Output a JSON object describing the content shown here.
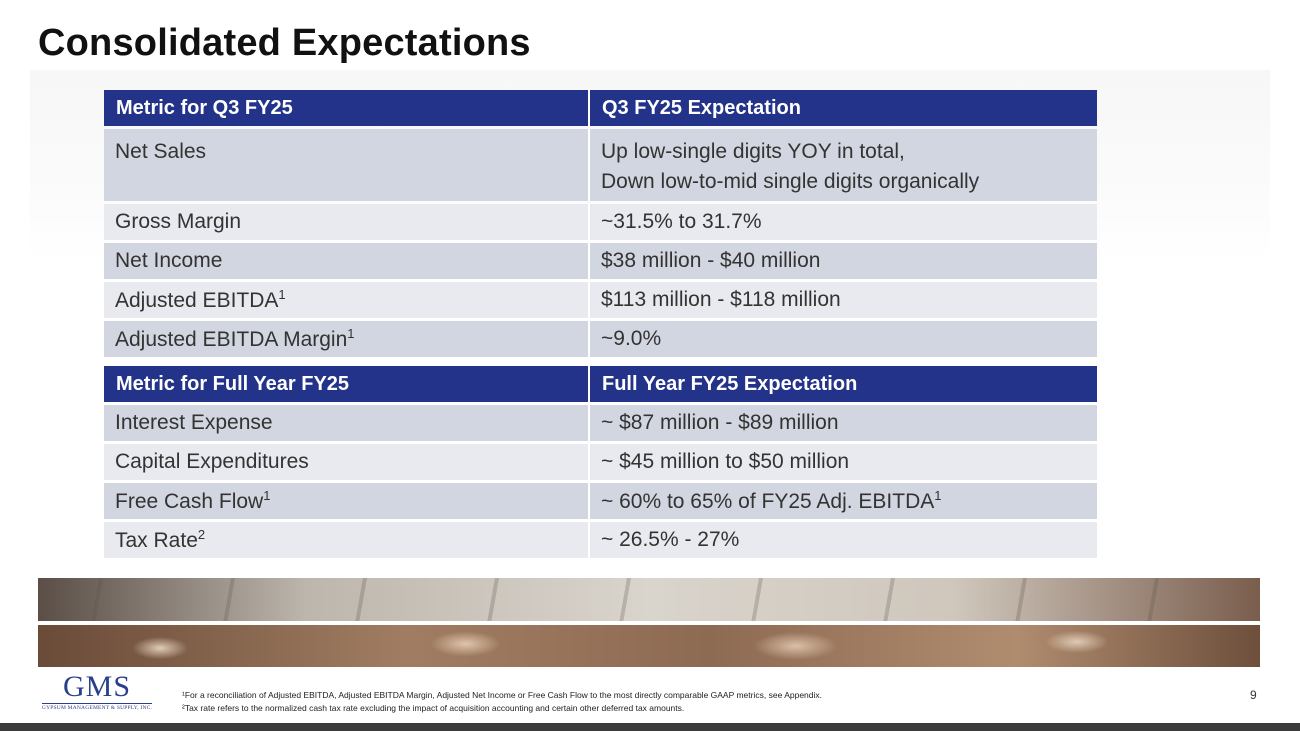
{
  "title": "Consolidated Expectations",
  "q3_table": {
    "headers": [
      "Metric for Q3 FY25",
      "Q3 FY25 Expectation"
    ],
    "rows": [
      {
        "metric": "Net Sales",
        "sup": "",
        "value": "Up low-single digits YOY in total,",
        "value2": "Down low-to-mid single digits organically",
        "value_sup": ""
      },
      {
        "metric": "Gross Margin",
        "sup": "",
        "value": "~31.5% to 31.7%",
        "value_sup": ""
      },
      {
        "metric": "Net Income",
        "sup": "",
        "value": "$38 million - $40 million",
        "value_sup": ""
      },
      {
        "metric": "Adjusted EBITDA",
        "sup": "1",
        "value": "$113 million - $118 million",
        "value_sup": ""
      },
      {
        "metric": "Adjusted EBITDA Margin",
        "sup": "1",
        "value": "~9.0%",
        "value_sup": ""
      }
    ]
  },
  "fy_table": {
    "headers": [
      "Metric for Full Year FY25",
      "Full Year FY25 Expectation"
    ],
    "rows": [
      {
        "metric": "Interest Expense",
        "sup": "",
        "value": "~ $87 million - $89 million",
        "value_sup": ""
      },
      {
        "metric": "Capital Expenditures",
        "sup": "",
        "value": "~ $45 million to $50 million",
        "value_sup": ""
      },
      {
        "metric": "Free Cash Flow",
        "sup": "1",
        "value": "~ 60% to 65% of FY25 Adj. EBITDA",
        "value_sup": "1"
      },
      {
        "metric": "Tax Rate",
        "sup": "2",
        "value": "~ 26.5% - 27%",
        "value_sup": ""
      }
    ]
  },
  "logo": {
    "main": "GMS",
    "sub": "GYPSUM MANAGEMENT & SUPPLY, INC."
  },
  "footnotes": [
    "¹For a reconciliation of Adjusted EBITDA, Adjusted EBITDA Margin, Adjusted Net Income or Free Cash Flow to the most directly comparable GAAP metrics, see Appendix.",
    "²Tax rate refers to the normalized cash tax rate excluding the impact of acquisition accounting and certain other deferred tax amounts."
  ],
  "page_number": "9",
  "colors": {
    "header_bg": "#233389",
    "row_dark": "#d2d6e0",
    "row_light": "#e9eaf0",
    "logo": "#2a3f8c"
  }
}
